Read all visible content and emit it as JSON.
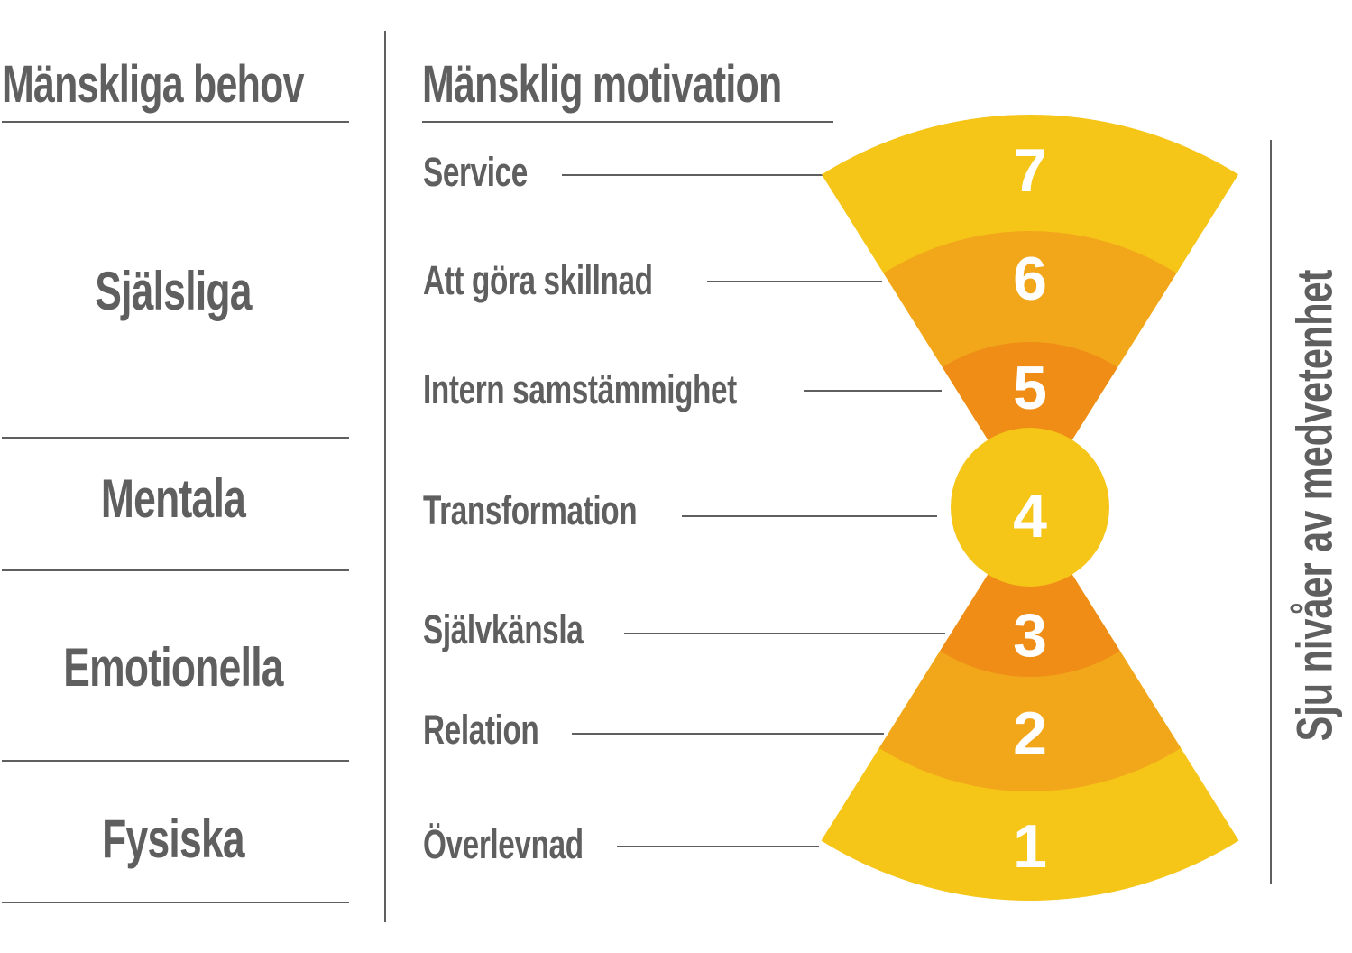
{
  "headers": {
    "needs": "Mänskliga behov",
    "motivation": "Mänsklig motivation"
  },
  "needs_categories": [
    "Själsliga",
    "Mentala",
    "Emotionella",
    "Fysiska"
  ],
  "levels": [
    {
      "number": "7",
      "label": "Service"
    },
    {
      "number": "6",
      "label": "Att göra skillnad"
    },
    {
      "number": "5",
      "label": "Intern samstämmighet"
    },
    {
      "number": "4",
      "label": "Transformation"
    },
    {
      "number": "3",
      "label": "Självkänsla"
    },
    {
      "number": "2",
      "label": "Relation"
    },
    {
      "number": "1",
      "label": "Överlevnad"
    }
  ],
  "side_label": "Sju nivåer av medvetenhet",
  "colors": {
    "text": "#5f5f5f",
    "light_yellow": "#f5c518",
    "mid_orange": "#f2a71b",
    "dark_orange": "#ef8d17"
  }
}
